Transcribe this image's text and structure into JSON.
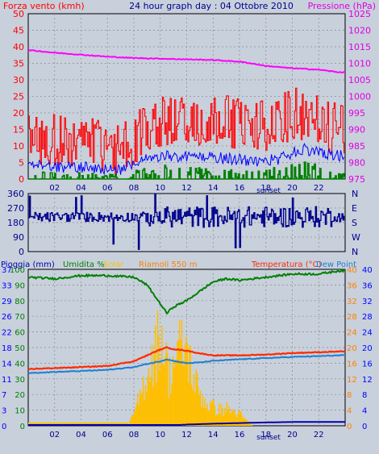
{
  "header": {
    "left_label": "Forza vento (kmh)",
    "title": "24 hour graph day : 04 Ottobre 2010",
    "right_label": "Pressione (hPa)"
  },
  "colors": {
    "bg": "#c8d0dc",
    "grid": "#8a8a8a",
    "wind_gust": "#ff0000",
    "wind_avg": "#0000ff",
    "wind_low": "#008000",
    "pressure": "#ff00ff",
    "direction": "#00008b",
    "humidity": "#008000",
    "solar": "#ffbf00",
    "temperature": "#ff2a00",
    "dewpoint": "#1e7fd0",
    "rain": "#0000aa",
    "label_red": "#ff0000",
    "label_magenta": "#e000e0",
    "label_green": "#008000",
    "label_orange": "#ff8000",
    "label_blue": "#0000ff",
    "label_darkblue": "#00008b"
  },
  "chart_data": [
    {
      "type": "line",
      "name": "wind-pressure",
      "x_ticks": [
        "02",
        "04",
        "06",
        "08",
        "10",
        "12",
        "14",
        "16",
        "18",
        "20",
        "22"
      ],
      "x_note": "sunset",
      "y_left_ticks": [
        "0",
        "5",
        "10",
        "15",
        "20",
        "25",
        "30",
        "35",
        "40",
        "45",
        "50"
      ],
      "ylim_left": [
        0,
        50
      ],
      "y_right_ticks": [
        "975",
        "980",
        "985",
        "990",
        "995",
        "1000",
        "1005",
        "1010",
        "1015",
        "1020",
        "1025"
      ],
      "ylim_right": [
        975,
        1025
      ],
      "pressure_hours": [
        0,
        2,
        4,
        6,
        8,
        10,
        12,
        14,
        16,
        17,
        18,
        20,
        22,
        23.5
      ],
      "pressure_values": [
        1014,
        1013.2,
        1012.6,
        1012.0,
        1011.6,
        1011.4,
        1011.2,
        1011.0,
        1010.5,
        1009.9,
        1009.2,
        1008.5,
        1008.1,
        1007.3
      ],
      "wind_gust_profile_hours": [
        0,
        4,
        7,
        8,
        10,
        14,
        17,
        19,
        20,
        21,
        22,
        23.5
      ],
      "wind_gust_profile_values": [
        12,
        11,
        9,
        12,
        18,
        18,
        16,
        17,
        20,
        18,
        17,
        15
      ],
      "wind_avg_profile_hours": [
        0,
        4,
        7,
        8,
        10,
        14,
        17,
        19,
        20,
        21,
        22,
        23.5
      ],
      "wind_avg_profile_values": [
        4,
        3.5,
        3,
        5,
        7,
        6.5,
        5.5,
        6,
        8,
        9,
        8,
        7
      ]
    },
    {
      "type": "line",
      "name": "wind-direction",
      "y_ticks": [
        "0",
        "90",
        "180",
        "270",
        "360"
      ],
      "ylim": [
        0,
        360
      ],
      "y_right_labels": [
        "N",
        "W",
        "S",
        "E",
        "N"
      ],
      "direction_mean": 215
    },
    {
      "type": "line",
      "name": "humidity-temperature",
      "series_labels": {
        "rain": "Pioggia (mm)",
        "humidity": "Umidita %",
        "solar": "Solar",
        "location": "Riamoli 550 m",
        "temperature": "Temperatura (°C)",
        "dewpoint": "Dew Point"
      },
      "y_left_ticks": [
        "0",
        "10",
        "20",
        "30",
        "40",
        "50",
        "60",
        "70",
        "80",
        "90",
        "100"
      ],
      "ylim_left": [
        0,
        100
      ],
      "y_left_rain_ticks": [
        "0",
        "3",
        "7",
        "11",
        "14",
        "18",
        "22",
        "26",
        "29",
        "33",
        "37"
      ],
      "y_right_ticks": [
        "0",
        "4",
        "8",
        "12",
        "16",
        "20",
        "24",
        "28",
        "32",
        "36",
        "40"
      ],
      "ylim_right": [
        0,
        40
      ],
      "humidity_hours": [
        0,
        2,
        4,
        6,
        8,
        9,
        9.5,
        10,
        10.5,
        11,
        12,
        13,
        14,
        15,
        16,
        17,
        18,
        20,
        22,
        23.5
      ],
      "humidity_values": [
        95,
        94,
        96,
        96,
        95,
        90,
        84,
        78,
        72,
        76,
        80,
        86,
        92,
        94,
        93,
        94,
        95,
        97,
        97,
        99
      ],
      "temperature_hours": [
        0,
        4,
        6,
        8,
        9,
        10,
        10.5,
        11,
        12,
        13,
        14,
        16,
        18,
        20,
        22,
        23.5
      ],
      "temperature_values": [
        14.5,
        15,
        15.3,
        16.5,
        18,
        19.5,
        20,
        19.6,
        19.2,
        18.5,
        18,
        18,
        18.2,
        18.6,
        18.8,
        19
      ],
      "dewpoint_hours": [
        0,
        4,
        6,
        8,
        9,
        10,
        10.5,
        11,
        12,
        13,
        14,
        16,
        18,
        20,
        22,
        23.5
      ],
      "dewpoint_values": [
        13.5,
        14,
        14.3,
        15,
        15.8,
        16.5,
        17,
        16.6,
        16,
        16.2,
        16.6,
        17,
        17.3,
        17.6,
        17.8,
        18
      ],
      "solar_hours": [
        7.5,
        8,
        8.5,
        9,
        9.5,
        10,
        10.3,
        10.6,
        11,
        11.5,
        12,
        12.5,
        13,
        13.5,
        14,
        14.5,
        15,
        15.5,
        16,
        16.5,
        17
      ],
      "solar_values": [
        0,
        8,
        20,
        35,
        45,
        60,
        48,
        30,
        42,
        50,
        48,
        30,
        20,
        14,
        12,
        10,
        11,
        9,
        7,
        3,
        0
      ],
      "rain_hours": [
        0,
        11.5,
        12,
        14,
        18,
        20,
        22,
        23.5
      ],
      "rain_values": [
        0,
        0,
        0.1,
        0.3,
        0.6,
        0.7,
        0.7,
        0.7
      ]
    }
  ]
}
